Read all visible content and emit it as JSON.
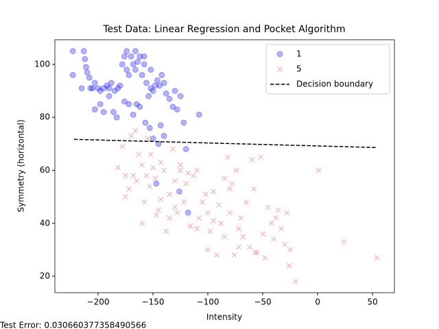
{
  "chart_data": {
    "type": "scatter",
    "title": "Test Data: Linear Regression and Pocket Algorithm",
    "x_label": "Intensity",
    "y_label": "Symmetry (horizontal)",
    "annotation": "Test Error: 0.030660377358490566",
    "xlim": [
      -239.4,
      70
    ],
    "ylim": [
      13.8,
      109.3
    ],
    "xticks": [
      {
        "value": -200,
        "label": "−200"
      },
      {
        "value": -150,
        "label": "−150"
      },
      {
        "value": -100,
        "label": "−100"
      },
      {
        "value": -50,
        "label": "−50"
      },
      0,
      50
    ],
    "yticks": [
      20,
      40,
      60,
      80,
      100
    ],
    "grid": false,
    "legend": "upper right",
    "series": [
      {
        "name": "1",
        "color": "#0000ff",
        "marker": "o",
        "x": [
          -223,
          -223,
          -213,
          -212,
          -210,
          -208,
          -207,
          -205,
          -203,
          -200,
          -198,
          -195,
          -192,
          -190,
          -188,
          -185,
          -182,
          -180,
          -178,
          -176,
          -174,
          -172,
          -170,
          -168,
          -166,
          -164,
          -162,
          -160,
          -158,
          -156,
          -154,
          -152,
          -150,
          -148,
          -146,
          -144,
          -142,
          -140,
          -138,
          -135,
          -132,
          -130,
          -128,
          -125,
          -122,
          -120,
          -108,
          -198,
          -195,
          -190,
          -186,
          -183,
          -176,
          -172,
          -168,
          -165,
          -162,
          -157,
          -153,
          -145,
          -143,
          -150,
          -140,
          -147,
          -126,
          -118,
          -203,
          -215,
          -211,
          -174,
          -166,
          -158,
          -152
        ],
        "values": [
          105,
          96,
          105,
          102,
          97,
          95,
          91,
          91,
          93,
          91,
          90,
          91,
          92,
          91,
          93,
          90,
          91,
          92,
          100,
          103,
          98,
          96,
          103,
          100,
          98,
          101,
          103,
          96,
          100,
          93,
          88,
          91,
          90,
          92,
          94,
          92,
          96,
          93,
          89,
          87,
          84,
          90,
          83,
          88,
          78,
          68,
          81,
          85,
          82,
          88,
          82,
          80,
          86,
          85,
          81,
          85,
          84,
          78,
          76,
          70,
          77,
          72,
          73,
          55,
          52,
          44,
          83,
          91,
          99,
          105,
          105,
          103,
          98
        ]
      },
      {
        "name": "5",
        "color": "#ff0000",
        "marker": "x",
        "x": [
          -182,
          -178,
          -175,
          -172,
          -170,
          -166,
          -163,
          -160,
          -158,
          -156,
          -155,
          -152,
          -150,
          -148,
          -145,
          -143,
          -140,
          -138,
          -135,
          -132,
          -130,
          -128,
          -125,
          -122,
          -120,
          -116,
          -113,
          -110,
          -108,
          -105,
          -102,
          -100,
          -98,
          -95,
          -92,
          -90,
          -88,
          -85,
          -82,
          -80,
          -78,
          -76,
          -74,
          -72,
          -70,
          -68,
          -65,
          -62,
          -60,
          -58,
          -55,
          -52,
          -50,
          -48,
          -45,
          -42,
          -40,
          -38,
          -36,
          -33,
          -30,
          -28,
          -26,
          -25,
          -20,
          1,
          24,
          54,
          -168,
          -160,
          -153,
          -147,
          -143,
          -118,
          -100,
          -95,
          -85,
          -72,
          -57,
          -80,
          -110,
          -130,
          -135,
          -125,
          -165,
          -175
        ],
        "values": [
          61,
          69,
          58,
          53,
          73,
          75,
          66,
          62,
          48,
          58,
          72,
          66,
          61,
          57,
          45,
          63,
          60,
          37,
          51,
          68,
          56,
          44,
          60,
          48,
          55,
          39,
          58,
          60,
          42,
          48,
          51,
          44,
          37,
          52,
          28,
          47,
          40,
          35,
          65,
          44,
          55,
          28,
          60,
          38,
          42,
          35,
          48,
          31,
          64,
          53,
          29,
          65,
          36,
          27,
          46,
          40,
          34,
          42,
          45,
          38,
          32,
          44,
          24,
          30,
          18,
          60,
          33,
          27,
          58,
          40,
          54,
          43,
          49,
          59,
          30,
          41,
          57,
          31,
          29,
          53,
          38,
          46,
          42,
          62,
          56,
          50
        ]
      },
      {
        "name": "Decision boundary",
        "color": "#000000",
        "linestyle": "dashed",
        "x": [
          -222,
          54
        ],
        "values": [
          71.7,
          68.6
        ]
      }
    ]
  }
}
